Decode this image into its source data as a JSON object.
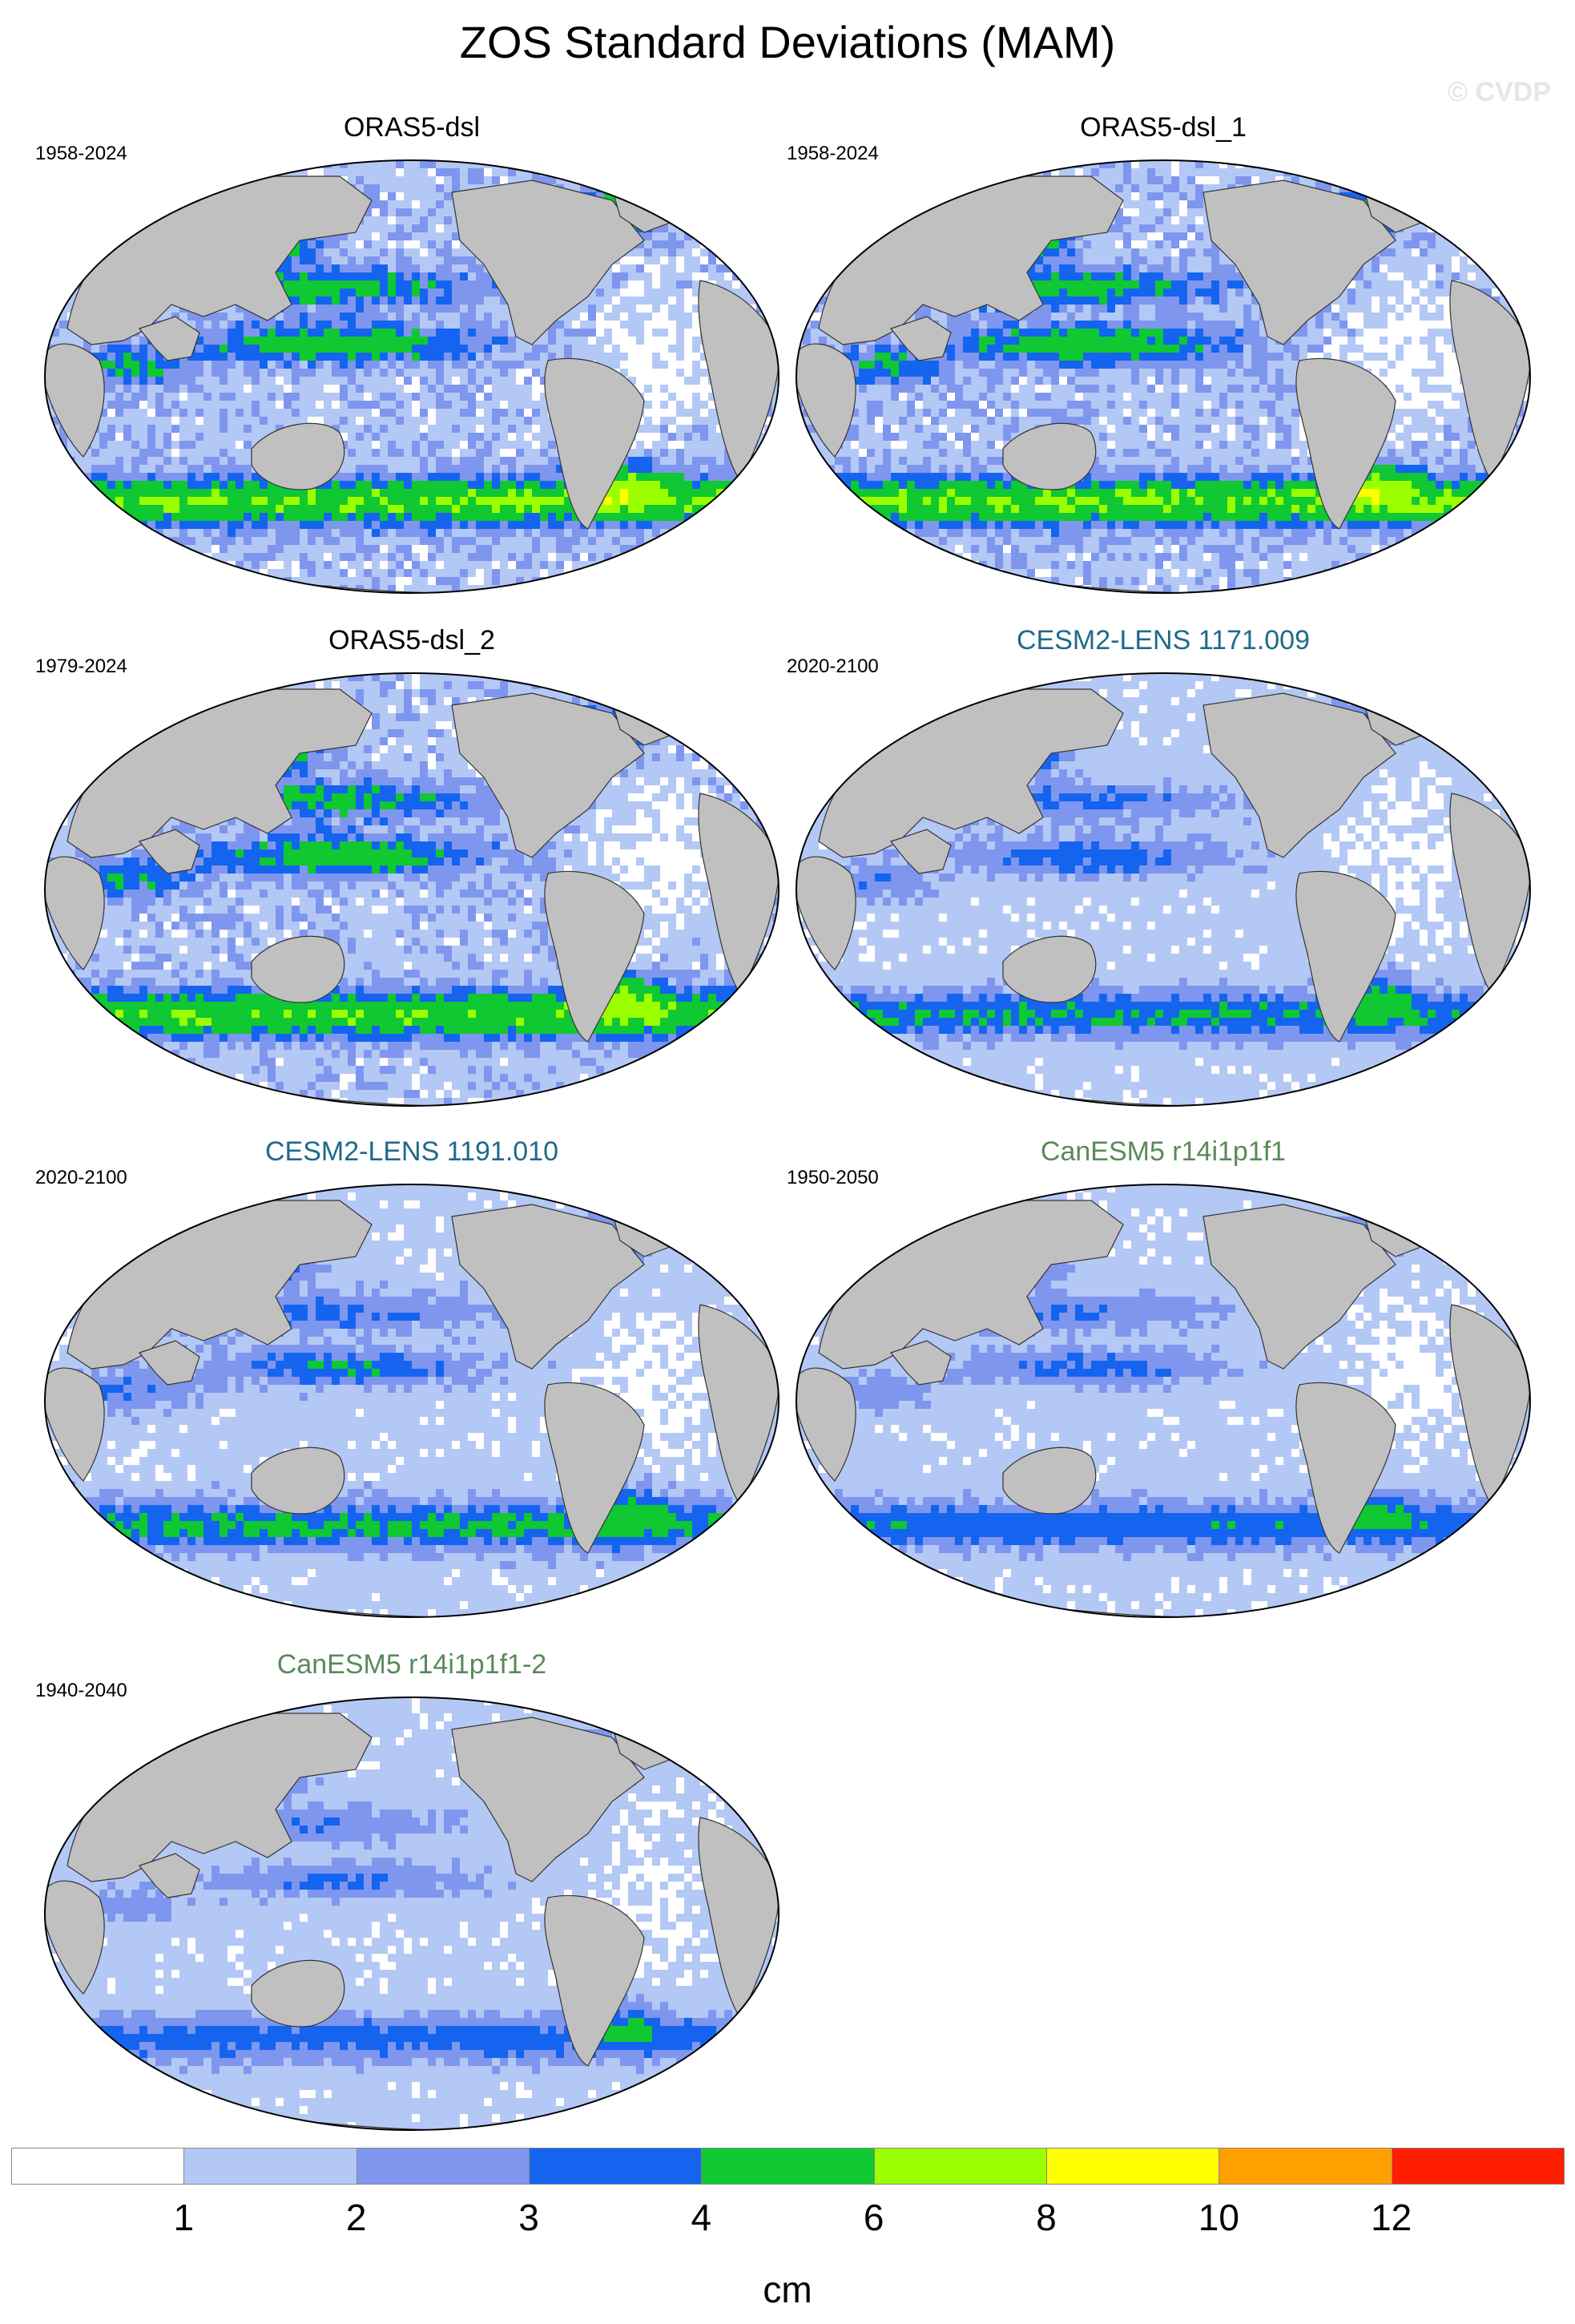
{
  "title": "ZOS Standard Deviations (MAM)",
  "watermark": "© CVDP",
  "panels": [
    {
      "name": "ORAS5-dsl",
      "period": "1958-2024",
      "group": "obs",
      "intensity": 1.0
    },
    {
      "name": "ORAS5-dsl_1",
      "period": "1958-2024",
      "group": "obs",
      "intensity": 1.0
    },
    {
      "name": "ORAS5-dsl_2",
      "period": "1979-2024",
      "group": "obs",
      "intensity": 0.95
    },
    {
      "name": "CESM2-LENS 1171.009",
      "period": "2020-2100",
      "group": "cesm",
      "intensity": 0.6
    },
    {
      "name": "CESM2-LENS 1191.010",
      "period": "2020-2100",
      "group": "cesm",
      "intensity": 0.65
    },
    {
      "name": "CanESM5 r14i1p1f1",
      "period": "1950-2050",
      "group": "can",
      "intensity": 0.55
    },
    {
      "name": "CanESM5 r14i1p1f1-2",
      "period": "1940-2040",
      "group": "can",
      "intensity": 0.5
    }
  ],
  "colorbar": {
    "units": "cm",
    "tick_labels": [
      "1",
      "2",
      "3",
      "4",
      "6",
      "8",
      "10",
      "12"
    ],
    "colors": [
      "#ffffff",
      "#b4c8f5",
      "#7f96ee",
      "#1464f0",
      "#0fc832",
      "#9bff00",
      "#ffff00",
      "#ffa000",
      "#ff1e00"
    ]
  },
  "colors": {
    "land": "#c0c0c0",
    "ocean_low": "#b4c8f5",
    "cesm_title": "#1f6a8a",
    "can_title": "#5a8a5a"
  }
}
